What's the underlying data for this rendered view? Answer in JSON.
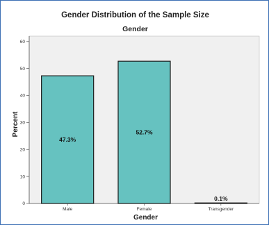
{
  "chart_data": {
    "type": "bar",
    "title": "Gender Distribution of the Sample Size",
    "subtitle": "Gender",
    "xlabel": "Gender",
    "ylabel": "Percent",
    "categories": [
      "Male",
      "Female",
      "Transgender"
    ],
    "values": [
      47.3,
      52.7,
      0.1
    ],
    "data_labels": [
      "47.3%",
      "52.7%",
      "0.1%"
    ],
    "ylim": [
      0,
      62
    ],
    "yticks": [
      0,
      10,
      20,
      30,
      40,
      50,
      60
    ],
    "grid": false,
    "legend": "none",
    "colors": {
      "bar_fill": "#66c2c0",
      "bar_stroke": "#1a1a1a",
      "plot_background": "#f0f0f0",
      "frame_border": "#3c6fb4"
    }
  }
}
